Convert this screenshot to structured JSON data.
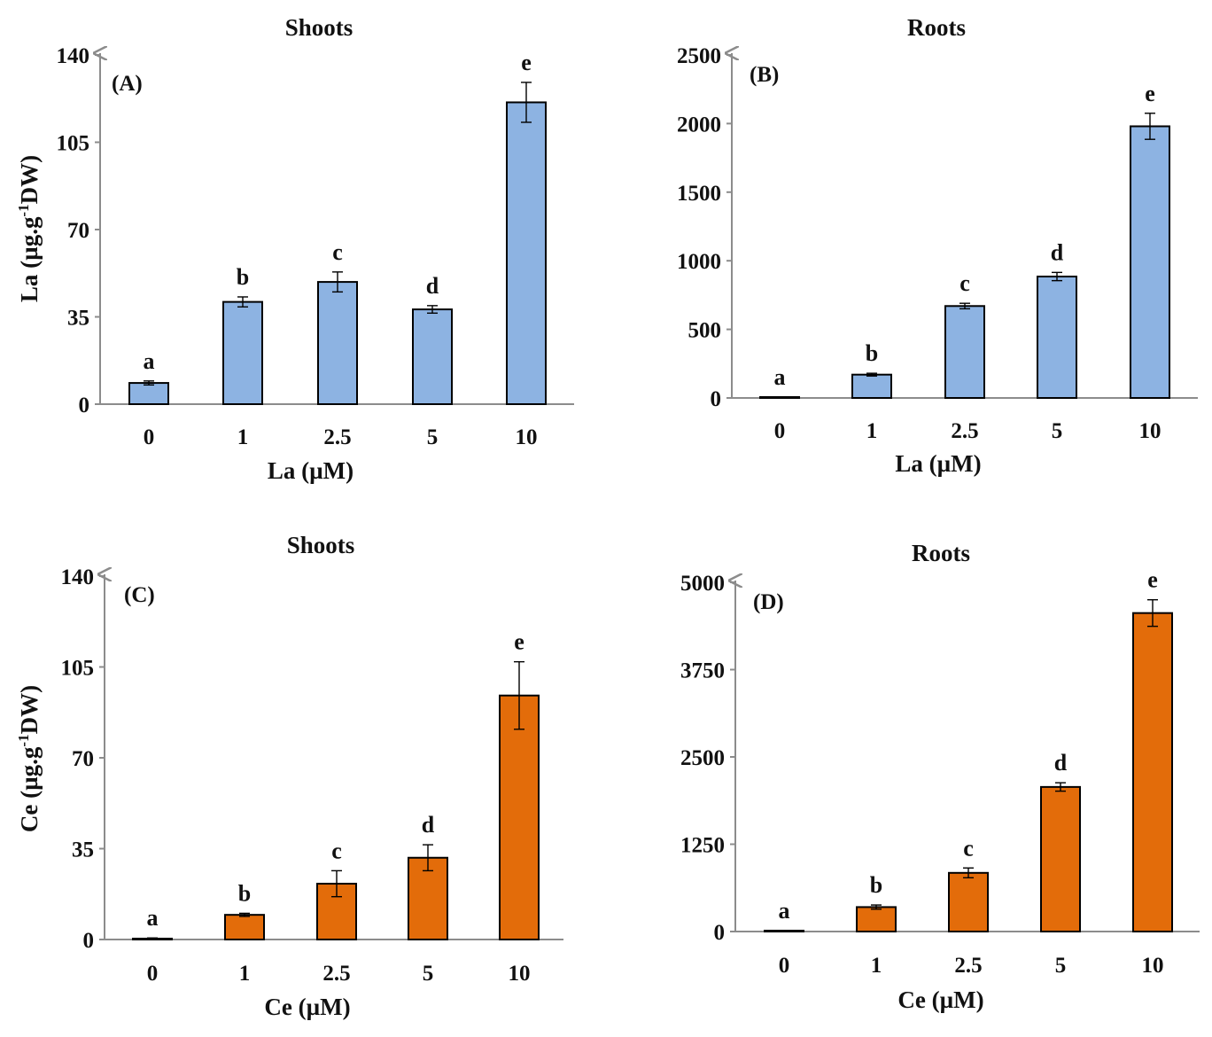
{
  "chart_data": [
    {
      "type": "bar",
      "panel_label": "(A)",
      "title": "Shoots",
      "xlabel": "La (µM)",
      "ylabel": "La (µg.g",
      "ylabel_sup": "-1",
      "ylabel_suffix": "DW)",
      "categories": [
        "0",
        "1",
        "2.5",
        "5",
        "10"
      ],
      "values": [
        8.5,
        41,
        49,
        38,
        121
      ],
      "errors": [
        0.8,
        2,
        4,
        1.5,
        8
      ],
      "sig_letters": [
        "a",
        "b",
        "c",
        "d",
        "e"
      ],
      "ylim": [
        0,
        140
      ],
      "yticks": [
        0,
        35,
        70,
        105,
        140
      ],
      "color": "#8db3e2",
      "grid": false
    },
    {
      "type": "bar",
      "panel_label": "(B)",
      "title": "Roots",
      "xlabel": "La (µM)",
      "ylabel": "",
      "categories": [
        "0",
        "1",
        "2.5",
        "5",
        "10"
      ],
      "values": [
        5,
        170,
        670,
        885,
        1980
      ],
      "errors": [
        2,
        10,
        20,
        30,
        95
      ],
      "sig_letters": [
        "a",
        "b",
        "c",
        "d",
        "e"
      ],
      "ylim": [
        0,
        2500
      ],
      "yticks": [
        0,
        500,
        1000,
        1500,
        2000,
        2500
      ],
      "color": "#8db3e2",
      "grid": false
    },
    {
      "type": "bar",
      "panel_label": "(C)",
      "title": "Shoots",
      "xlabel": "Ce (µM)",
      "ylabel": "Ce (µg.g",
      "ylabel_sup": "-1",
      "ylabel_suffix": "DW)",
      "categories": [
        "0",
        "1",
        "2.5",
        "5",
        "10"
      ],
      "values": [
        0.3,
        9.5,
        21.5,
        31.5,
        94
      ],
      "errors": [
        0.3,
        0.6,
        5,
        5,
        13
      ],
      "sig_letters": [
        "a",
        "b",
        "c",
        "d",
        "e"
      ],
      "ylim": [
        0,
        140
      ],
      "yticks": [
        0,
        35,
        70,
        105,
        140
      ],
      "color": "#e36c0a",
      "grid": false
    },
    {
      "type": "bar",
      "panel_label": "(D)",
      "title": "Roots",
      "xlabel": "Ce (µM)",
      "ylabel": "",
      "categories": [
        "0",
        "1",
        "2.5",
        "5",
        "10"
      ],
      "values": [
        10,
        350,
        840,
        2070,
        4560
      ],
      "errors": [
        5,
        30,
        70,
        60,
        190
      ],
      "sig_letters": [
        "a",
        "b",
        "c",
        "d",
        "e"
      ],
      "ylim": [
        0,
        5000
      ],
      "yticks": [
        0,
        1250,
        2500,
        3750,
        5000
      ],
      "color": "#e36c0a",
      "grid": false
    }
  ]
}
